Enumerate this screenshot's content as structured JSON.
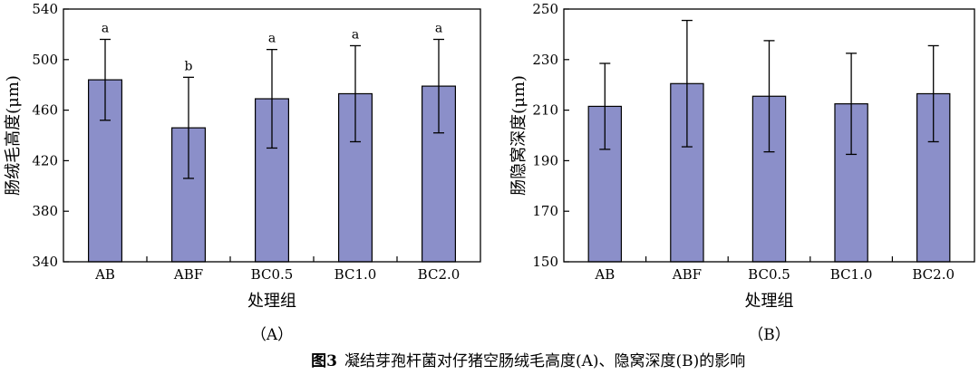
{
  "figure": {
    "caption_number": "图3",
    "caption_text": "凝结芽孢杆菌对仔猪空肠绒毛高度(A)、隐窝深度(B)的影响"
  },
  "colors": {
    "bar": "#8b8fc9",
    "axis": "#000000"
  },
  "chart_data": [
    {
      "type": "bar",
      "panel_label": "（A）",
      "xlabel": "处理组",
      "ylabel": "肠绒毛高度(μm)",
      "ylim": [
        340,
        540
      ],
      "yticks": [
        "340",
        "380",
        "420",
        "460",
        "500",
        "540"
      ],
      "categories": [
        "AB",
        "ABF",
        "BC0.5",
        "BC1.0",
        "BC2.0"
      ],
      "values": [
        484,
        446,
        469,
        473,
        479
      ],
      "errors": [
        32,
        40,
        39,
        38,
        37
      ],
      "letters": [
        "a",
        "b",
        "a",
        "a",
        "a"
      ]
    },
    {
      "type": "bar",
      "panel_label": "（B）",
      "xlabel": "处理组",
      "ylabel": "肠隐窝深度(μm)",
      "ylim": [
        150,
        250
      ],
      "yticks": [
        "150",
        "170",
        "190",
        "210",
        "230",
        "250"
      ],
      "categories": [
        "AB",
        "ABF",
        "BC0.5",
        "BC1.0",
        "BC2.0"
      ],
      "values": [
        211.5,
        220.5,
        215.5,
        212.5,
        216.5
      ],
      "errors": [
        17,
        25,
        22,
        20,
        19
      ],
      "letters": []
    }
  ]
}
